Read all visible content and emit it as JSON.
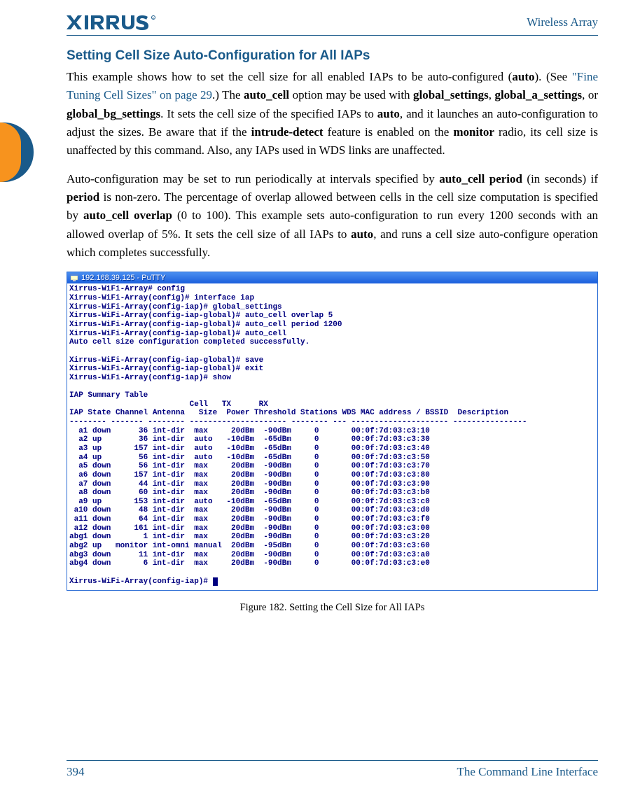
{
  "header": {
    "logo_text": "XIRRUS",
    "right_text": "Wireless Array"
  },
  "section_title": "Setting Cell Size Auto-Configuration for All IAPs",
  "para1": {
    "t1": "This example shows how to set the cell size for all enabled IAPs to be auto-configured (",
    "b1": "auto",
    "t2": "). (See ",
    "link": "\"Fine Tuning Cell Sizes\" on page 29",
    "t3": ".) The ",
    "b2": "auto_cell",
    "t4": " option may be used with ",
    "b3": "global_settings",
    "t5": ", ",
    "b4": "global_a_settings",
    "t6": ", or ",
    "b5": "global_bg_settings",
    "t7": ". It sets the cell size of the specified IAPs to ",
    "b6": "auto",
    "t8": ", and it launches an auto-configuration to adjust the sizes. Be aware that if the ",
    "b7": "intrude-detect",
    "t9": " feature is enabled on the ",
    "b8": "monitor",
    "t10": " radio, its cell size is unaffected by this command. Also, any IAPs used in WDS links are unaffected."
  },
  "para2": {
    "t1": "Auto-configuration may be set to run periodically at intervals specified by ",
    "b1": "auto_cell period",
    "t2": " (in seconds) if ",
    "b2": "period",
    "t3": " is non-zero. The percentage of overlap allowed between cells in the cell size computation is specified by ",
    "b3": "auto_cell overlap",
    "t4": " (0 to 100). This example sets auto-configuration to run every 1200 seconds with an allowed overlap of 5%. It sets the cell size of all IAPs to ",
    "b4": "auto",
    "t5": ", and runs a cell size auto-configure operation which completes successfully."
  },
  "putty": {
    "title": "192.168.39.125 - PuTTY",
    "preamble": [
      "Xirrus-WiFi-Array# config",
      "Xirrus-WiFi-Array(config)# interface iap",
      "Xirrus-WiFi-Array(config-iap)# global_settings",
      "Xirrus-WiFi-Array(config-iap-global)# auto_cell overlap 5",
      "Xirrus-WiFi-Array(config-iap-global)# auto_cell period 1200",
      "Xirrus-WiFi-Array(config-iap-global)# auto_cell",
      "Auto cell size configuration completed successfully.",
      "",
      "Xirrus-WiFi-Array(config-iap-global)# save",
      "Xirrus-WiFi-Array(config-iap-global)# exit",
      "Xirrus-WiFi-Array(config-iap)# show",
      "",
      "IAP Summary Table"
    ],
    "header_l1": "                          Cell   TX      RX",
    "header_l2": "IAP State Channel Antenna   Size  Power Threshold Stations WDS MAC address / BSSID  Description",
    "divider": "-------- ------- -------- --------------------- -------- --- --------------------- ----------------",
    "rows": [
      {
        "iap": "a1",
        "state": "down",
        "ch": "36",
        "ant": "int-dir",
        "size": "max",
        "tx": "20dBm",
        "rx": "-90dBm",
        "st": "0",
        "mac": "00:0f:7d:03:c3:10"
      },
      {
        "iap": "a2",
        "state": "up",
        "ch": "36",
        "ant": "int-dir",
        "size": "auto",
        "tx": "-10dBm",
        "rx": "-65dBm",
        "st": "0",
        "mac": "00:0f:7d:03:c3:30"
      },
      {
        "iap": "a3",
        "state": "up",
        "ch": "157",
        "ant": "int-dir",
        "size": "auto",
        "tx": "-10dBm",
        "rx": "-65dBm",
        "st": "0",
        "mac": "00:0f:7d:03:c3:40"
      },
      {
        "iap": "a4",
        "state": "up",
        "ch": "56",
        "ant": "int-dir",
        "size": "auto",
        "tx": "-10dBm",
        "rx": "-65dBm",
        "st": "0",
        "mac": "00:0f:7d:03:c3:50"
      },
      {
        "iap": "a5",
        "state": "down",
        "ch": "56",
        "ant": "int-dir",
        "size": "max",
        "tx": "20dBm",
        "rx": "-90dBm",
        "st": "0",
        "mac": "00:0f:7d:03:c3:70"
      },
      {
        "iap": "a6",
        "state": "down",
        "ch": "157",
        "ant": "int-dir",
        "size": "max",
        "tx": "20dBm",
        "rx": "-90dBm",
        "st": "0",
        "mac": "00:0f:7d:03:c3:80"
      },
      {
        "iap": "a7",
        "state": "down",
        "ch": "44",
        "ant": "int-dir",
        "size": "max",
        "tx": "20dBm",
        "rx": "-90dBm",
        "st": "0",
        "mac": "00:0f:7d:03:c3:90"
      },
      {
        "iap": "a8",
        "state": "down",
        "ch": "60",
        "ant": "int-dir",
        "size": "max",
        "tx": "20dBm",
        "rx": "-90dBm",
        "st": "0",
        "mac": "00:0f:7d:03:c3:b0"
      },
      {
        "iap": "a9",
        "state": "up",
        "ch": "153",
        "ant": "int-dir",
        "size": "auto",
        "tx": "-10dBm",
        "rx": "-65dBm",
        "st": "0",
        "mac": "00:0f:7d:03:c3:c0"
      },
      {
        "iap": "a10",
        "state": "down",
        "ch": "48",
        "ant": "int-dir",
        "size": "max",
        "tx": "20dBm",
        "rx": "-90dBm",
        "st": "0",
        "mac": "00:0f:7d:03:c3:d0"
      },
      {
        "iap": "a11",
        "state": "down",
        "ch": "64",
        "ant": "int-dir",
        "size": "max",
        "tx": "20dBm",
        "rx": "-90dBm",
        "st": "0",
        "mac": "00:0f:7d:03:c3:f0"
      },
      {
        "iap": "a12",
        "state": "down",
        "ch": "161",
        "ant": "int-dir",
        "size": "max",
        "tx": "20dBm",
        "rx": "-90dBm",
        "st": "0",
        "mac": "00:0f:7d:03:c3:00"
      },
      {
        "iap": "abg1",
        "state": "down",
        "ch": "1",
        "ant": "int-dir",
        "size": "max",
        "tx": "20dBm",
        "rx": "-90dBm",
        "st": "0",
        "mac": "00:0f:7d:03:c3:20"
      },
      {
        "iap": "abg2",
        "state": "up",
        "ch": "monitor",
        "ant": "int-omni",
        "size": "manual",
        "tx": "20dBm",
        "rx": "-95dBm",
        "st": "0",
        "mac": "00:0f:7d:03:c3:60"
      },
      {
        "iap": "abg3",
        "state": "down",
        "ch": "11",
        "ant": "int-dir",
        "size": "max",
        "tx": "20dBm",
        "rx": "-90dBm",
        "st": "0",
        "mac": "00:0f:7d:03:c3:a0"
      },
      {
        "iap": "abg4",
        "state": "down",
        "ch": "6",
        "ant": "int-dir",
        "size": "max",
        "tx": "20dBm",
        "rx": "-90dBm",
        "st": "0",
        "mac": "00:0f:7d:03:c3:e0"
      }
    ],
    "prompt": "Xirrus-WiFi-Array(config-iap)# "
  },
  "figure_caption": "Figure 182. Setting the Cell Size for All IAPs",
  "footer": {
    "page_number": "394",
    "right_text": "The Command Line Interface"
  },
  "colors": {
    "brand_blue": "#1a5a8a",
    "tab_orange": "#f7931e",
    "terminal_text": "#000080",
    "titlebar_top": "#4a8ef0",
    "titlebar_bottom": "#1a5edc"
  }
}
